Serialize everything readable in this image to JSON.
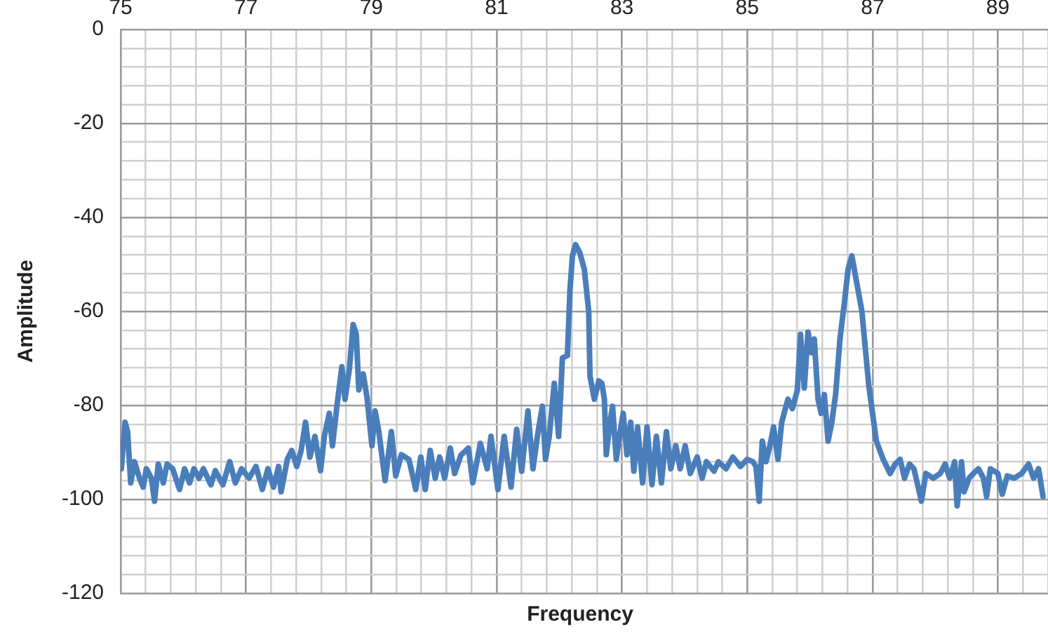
{
  "chart_data": {
    "type": "line",
    "xlabel": "Frequency",
    "ylabel": "Amplitude",
    "x": [
      75.01,
      75.07,
      75.11,
      75.16,
      75.22,
      75.3,
      75.36,
      75.41,
      75.49,
      75.54,
      75.6,
      75.68,
      75.74,
      75.83,
      75.94,
      76.02,
      76.1,
      76.17,
      76.25,
      76.32,
      76.44,
      76.51,
      76.63,
      76.74,
      76.83,
      76.93,
      77.05,
      77.16,
      77.26,
      77.35,
      77.44,
      77.52,
      77.56,
      77.66,
      77.73,
      77.81,
      77.88,
      77.95,
      78.02,
      78.1,
      78.19,
      78.25,
      78.33,
      78.38,
      78.46,
      78.53,
      78.58,
      78.65,
      78.71,
      78.76,
      78.8,
      78.87,
      78.93,
      79.01,
      79.06,
      79.12,
      79.22,
      79.32,
      79.39,
      79.48,
      79.6,
      79.71,
      79.79,
      79.86,
      79.94,
      80.02,
      80.09,
      80.17,
      80.26,
      80.33,
      80.43,
      80.55,
      80.62,
      80.74,
      80.85,
      80.91,
      81.02,
      81.12,
      81.23,
      81.32,
      81.4,
      81.5,
      81.58,
      81.65,
      81.73,
      81.78,
      81.84,
      81.92,
      81.99,
      82.05,
      82.13,
      82.17,
      82.21,
      82.26,
      82.33,
      82.4,
      82.47,
      82.49,
      82.56,
      82.63,
      82.68,
      82.72,
      82.75,
      82.81,
      82.85,
      82.91,
      82.96,
      83.02,
      83.08,
      83.14,
      83.19,
      83.25,
      83.33,
      83.4,
      83.48,
      83.55,
      83.63,
      83.71,
      83.78,
      83.86,
      83.93,
      84.01,
      84.09,
      84.2,
      84.28,
      84.35,
      84.47,
      84.54,
      84.66,
      84.77,
      84.89,
      85.0,
      85.09,
      85.14,
      85.19,
      85.24,
      85.3,
      85.37,
      85.42,
      85.49,
      85.55,
      85.65,
      85.72,
      85.8,
      85.85,
      85.91,
      85.97,
      86.03,
      86.07,
      86.13,
      86.18,
      86.23,
      86.29,
      86.35,
      86.41,
      86.48,
      86.56,
      86.61,
      86.67,
      86.75,
      86.83,
      86.94,
      87.06,
      87.17,
      87.28,
      87.36,
      87.44,
      87.51,
      87.59,
      87.66,
      87.78,
      87.85,
      87.97,
      88.08,
      88.16,
      88.23,
      88.31,
      88.35,
      88.42,
      88.46,
      88.54,
      88.61,
      88.69,
      88.77,
      88.82,
      88.88,
      89.0,
      89.07,
      89.15,
      89.26,
      89.38,
      89.49,
      89.57,
      89.65,
      89.72
    ],
    "series": [
      {
        "color": "#4a7ebb",
        "values": [
          -93.5,
          -83.6,
          -85.6,
          -96.5,
          -92.0,
          -95.5,
          -97.4,
          -93.5,
          -95.5,
          -100.4,
          -92.5,
          -96.5,
          -92.5,
          -93.5,
          -97.9,
          -93.5,
          -96.5,
          -93.5,
          -95.5,
          -93.5,
          -96.9,
          -93.9,
          -96.9,
          -92.0,
          -96.5,
          -93.5,
          -95.5,
          -93.0,
          -97.9,
          -93.5,
          -97.4,
          -93.0,
          -98.4,
          -91.5,
          -89.6,
          -93.0,
          -89.6,
          -83.6,
          -91.0,
          -86.6,
          -93.9,
          -86.6,
          -81.7,
          -88.6,
          -79.2,
          -71.8,
          -78.7,
          -72.3,
          -62.8,
          -64.9,
          -76.7,
          -73.3,
          -78.2,
          -88.6,
          -81.2,
          -85.6,
          -96.0,
          -85.6,
          -95.0,
          -90.5,
          -91.5,
          -97.9,
          -91.0,
          -97.9,
          -89.6,
          -95.5,
          -91.0,
          -95.5,
          -89.1,
          -94.5,
          -90.6,
          -89.1,
          -96.5,
          -88.1,
          -93.5,
          -86.6,
          -97.9,
          -86.6,
          -97.4,
          -85.1,
          -94.0,
          -81.2,
          -93.5,
          -86.6,
          -80.2,
          -91.5,
          -86.6,
          -75.3,
          -86.6,
          -69.9,
          -69.4,
          -55.6,
          -48.2,
          -45.8,
          -47.6,
          -51.1,
          -60.0,
          -73.8,
          -78.7,
          -74.8,
          -75.3,
          -78.7,
          -90.5,
          -83.6,
          -80.2,
          -91.5,
          -86.6,
          -81.7,
          -90.5,
          -83.6,
          -94.0,
          -84.6,
          -96.5,
          -84.6,
          -96.9,
          -86.6,
          -96.5,
          -85.6,
          -93.5,
          -88.6,
          -93.5,
          -88.6,
          -94.5,
          -91.0,
          -95.5,
          -92.0,
          -94.0,
          -92.0,
          -93.5,
          -91.0,
          -93.0,
          -91.5,
          -92.0,
          -93.0,
          -100.4,
          -87.6,
          -92.0,
          -88.1,
          -84.6,
          -91.5,
          -83.6,
          -78.7,
          -80.7,
          -76.7,
          -64.9,
          -76.3,
          -64.4,
          -68.8,
          -65.9,
          -78.7,
          -81.7,
          -77.7,
          -87.6,
          -83.6,
          -77.7,
          -65.9,
          -57.0,
          -51.0,
          -48.2,
          -54.1,
          -60.0,
          -75.8,
          -87.6,
          -91.5,
          -94.5,
          -92.5,
          -91.5,
          -95.5,
          -92.5,
          -93.5,
          -100.4,
          -94.5,
          -95.5,
          -94.5,
          -92.5,
          -95.5,
          -92.0,
          -101.4,
          -92.0,
          -98.4,
          -95.5,
          -94.5,
          -93.5,
          -95.5,
          -99.4,
          -93.5,
          -94.5,
          -98.9,
          -95.0,
          -95.5,
          -94.5,
          -92.5,
          -95.5,
          -93.5,
          -99.4
        ]
      }
    ],
    "xlim": [
      75,
      89.8
    ],
    "xticks": [
      75,
      {
        "value": 75.4,
        "label": null
      },
      {
        "value": 75.8,
        "label": null
      },
      {
        "value": 76.2,
        "label": null
      },
      {
        "value": 76.6,
        "label": null
      },
      77,
      {
        "value": 77.4,
        "label": null
      },
      {
        "value": 77.8,
        "label": null
      },
      {
        "value": 78.2,
        "label": null
      },
      {
        "value": 78.6,
        "label": null
      },
      79,
      {
        "value": 79.4,
        "label": null
      },
      {
        "value": 79.8,
        "label": null
      },
      {
        "value": 80.2,
        "label": null
      },
      {
        "value": 80.6,
        "label": null
      },
      81,
      {
        "value": 81.4,
        "label": null
      },
      {
        "value": 81.8,
        "label": null
      },
      {
        "value": 82.2,
        "label": null
      },
      {
        "value": 82.6,
        "label": null
      },
      83,
      {
        "value": 83.4,
        "label": null
      },
      {
        "value": 83.8,
        "label": null
      },
      {
        "value": 84.2,
        "label": null
      },
      {
        "value": 84.6,
        "label": null
      },
      85,
      {
        "value": 85.4,
        "label": null
      },
      {
        "value": 85.8,
        "label": null
      },
      {
        "value": 86.2,
        "label": null
      },
      {
        "value": 86.6,
        "label": null
      },
      87,
      {
        "value": 87.4,
        "label": null
      },
      {
        "value": 87.8,
        "label": null
      },
      {
        "value": 88.2,
        "label": null
      },
      {
        "value": 88.6,
        "label": null
      },
      89,
      {
        "value": 89.4,
        "label": null
      },
      {
        "value": 89.8,
        "label": null
      }
    ],
    "ylim": [
      -120,
      0
    ],
    "yticks": [
      0,
      {
        "value": -4,
        "label": null
      },
      {
        "value": -8,
        "label": null
      },
      {
        "value": -12,
        "label": null
      },
      {
        "value": -16,
        "label": null
      },
      -20,
      {
        "value": -24,
        "label": null
      },
      {
        "value": -28,
        "label": null
      },
      {
        "value": -32,
        "label": null
      },
      {
        "value": -36,
        "label": null
      },
      -40,
      {
        "value": -44,
        "label": null
      },
      {
        "value": -48,
        "label": null
      },
      {
        "value": -52,
        "label": null
      },
      {
        "value": -56,
        "label": null
      },
      -60,
      {
        "value": -64,
        "label": null
      },
      {
        "value": -68,
        "label": null
      },
      {
        "value": -72,
        "label": null
      },
      {
        "value": -76,
        "label": null
      },
      -80,
      {
        "value": -84,
        "label": null
      },
      {
        "value": -88,
        "label": null
      },
      {
        "value": -92,
        "label": null
      },
      {
        "value": -96,
        "label": null
      },
      -100,
      {
        "value": -104,
        "label": null
      },
      {
        "value": -108,
        "label": null
      },
      {
        "value": -112,
        "label": null
      },
      {
        "value": -116,
        "label": null
      },
      -120
    ],
    "grid": true
  }
}
